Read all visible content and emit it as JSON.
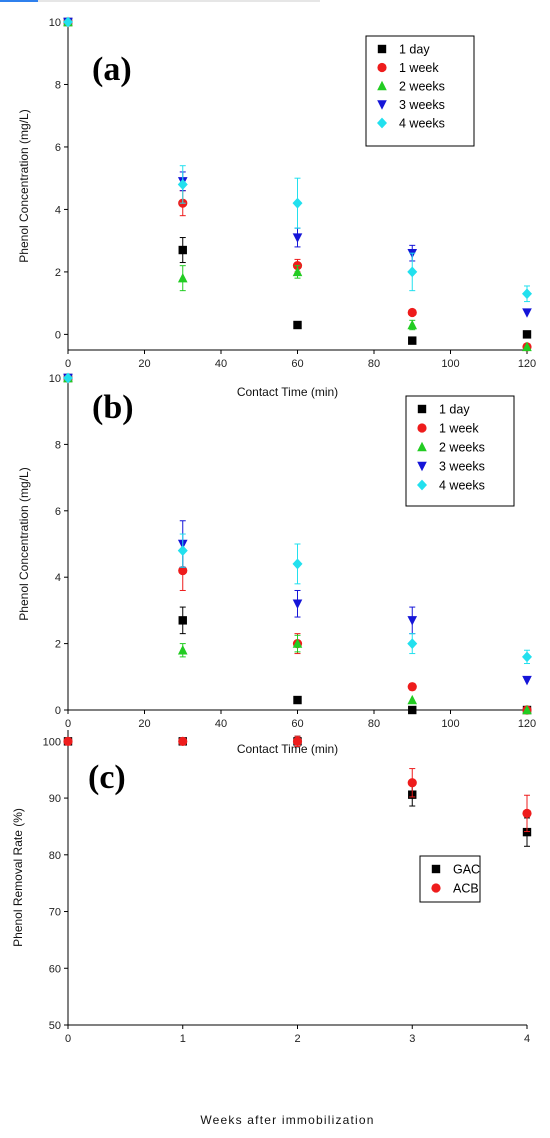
{
  "figure": {
    "panels": [
      {
        "tag": "(a)"
      },
      {
        "tag": "(b)"
      },
      {
        "tag": "(c)"
      }
    ]
  },
  "chart_data": [
    {
      "type": "scatter",
      "panel": "(a)",
      "xlabel": "Contact Time (min)",
      "ylabel": "Phenol Concentration (mg/L)",
      "xlim": [
        0,
        120
      ],
      "ylim": [
        -0.5,
        10
      ],
      "xticks": [
        0,
        20,
        40,
        60,
        80,
        100,
        120
      ],
      "yticks": [
        0,
        2,
        4,
        6,
        8,
        10
      ],
      "legend_position": "top-right",
      "grid": false,
      "series": [
        {
          "name": "1 day",
          "color": "#000000",
          "marker": "square",
          "x": [
            0,
            30,
            60,
            90,
            120
          ],
          "y": [
            10,
            2.7,
            0.3,
            -0.2,
            0
          ],
          "err": [
            0,
            0.4,
            0.05,
            0,
            0
          ]
        },
        {
          "name": "1 week",
          "color": "#ee1c1c",
          "marker": "circle",
          "x": [
            0,
            30,
            60,
            90,
            120
          ],
          "y": [
            10,
            4.2,
            2.2,
            0.7,
            -0.4
          ],
          "err": [
            0,
            0.4,
            0.2,
            0,
            0
          ]
        },
        {
          "name": "2 weeks",
          "color": "#22cc22",
          "marker": "triangle-up",
          "x": [
            0,
            30,
            60,
            90,
            120
          ],
          "y": [
            10,
            1.8,
            2.0,
            0.3,
            -0.4
          ],
          "err": [
            0,
            0.4,
            0.2,
            0.15,
            0
          ]
        },
        {
          "name": "3 weeks",
          "color": "#1515d8",
          "marker": "triangle-down",
          "x": [
            0,
            30,
            60,
            90,
            120
          ],
          "y": [
            10,
            4.9,
            3.1,
            2.6,
            0.7
          ],
          "err": [
            0,
            0.3,
            0.3,
            0.25,
            0
          ]
        },
        {
          "name": "4 weeks",
          "color": "#22e0ee",
          "marker": "diamond",
          "x": [
            0,
            30,
            60,
            90,
            120
          ],
          "y": [
            10,
            4.8,
            4.2,
            2.0,
            1.3
          ],
          "err": [
            0,
            0.6,
            0.8,
            0.6,
            0.25
          ]
        }
      ]
    },
    {
      "type": "scatter",
      "panel": "(b)",
      "xlabel": "Contact Time (min)",
      "ylabel": "Phenol Concentration (mg/L)",
      "xlim": [
        0,
        120
      ],
      "ylim": [
        0,
        10
      ],
      "xticks": [
        0,
        20,
        40,
        60,
        80,
        100,
        120
      ],
      "yticks": [
        0,
        2,
        4,
        6,
        8,
        10
      ],
      "legend_position": "top-right",
      "grid": false,
      "series": [
        {
          "name": "1 day",
          "color": "#000000",
          "marker": "square",
          "x": [
            0,
            30,
            60,
            90,
            120
          ],
          "y": [
            10,
            2.7,
            0.3,
            0,
            0
          ],
          "err": [
            0,
            0.4,
            0.05,
            0,
            0
          ]
        },
        {
          "name": "1 week",
          "color": "#ee1c1c",
          "marker": "circle",
          "x": [
            0,
            30,
            60,
            90,
            120
          ],
          "y": [
            10,
            4.2,
            2.0,
            0.7,
            0
          ],
          "err": [
            0,
            0.6,
            0.3,
            0.1,
            0
          ]
        },
        {
          "name": "2 weeks",
          "color": "#22cc22",
          "marker": "triangle-up",
          "x": [
            0,
            30,
            60,
            90,
            120
          ],
          "y": [
            10,
            1.8,
            2.0,
            0.3,
            0
          ],
          "err": [
            0,
            0.2,
            0.25,
            0,
            0
          ]
        },
        {
          "name": "3 weeks",
          "color": "#1515d8",
          "marker": "triangle-down",
          "x": [
            0,
            30,
            60,
            90,
            120
          ],
          "y": [
            10,
            5.0,
            3.2,
            2.7,
            0.9
          ],
          "err": [
            0,
            0.7,
            0.4,
            0.4,
            0
          ]
        },
        {
          "name": "4 weeks",
          "color": "#22e0ee",
          "marker": "diamond",
          "x": [
            0,
            30,
            60,
            90,
            120
          ],
          "y": [
            10,
            4.8,
            4.4,
            2.0,
            1.6
          ],
          "err": [
            0,
            0.5,
            0.6,
            0.3,
            0.2
          ]
        }
      ]
    },
    {
      "type": "scatter",
      "panel": "(c)",
      "xlabel": "Weeks after immobilization",
      "ylabel": "Phenol Removal Rate (%)",
      "xlim": [
        0,
        4
      ],
      "ylim": [
        50,
        102
      ],
      "xticks": [
        0,
        1,
        2,
        3,
        4
      ],
      "yticks": [
        50,
        60,
        70,
        80,
        90,
        100
      ],
      "legend_position": "lower-right",
      "grid": false,
      "series": [
        {
          "name": "GAC",
          "color": "#000000",
          "marker": "square",
          "x": [
            0,
            1,
            2,
            3,
            4
          ],
          "y": [
            100,
            100,
            100,
            90.6,
            84
          ],
          "err": [
            0,
            0.4,
            0.9,
            2.0,
            2.5
          ]
        },
        {
          "name": "ACB",
          "color": "#ee1c1c",
          "marker": "circle",
          "x": [
            0,
            1,
            2,
            3,
            4
          ],
          "y": [
            100,
            100,
            100,
            92.7,
            87.3
          ],
          "err": [
            0,
            0.3,
            0.9,
            2.5,
            3.2
          ]
        }
      ]
    }
  ]
}
